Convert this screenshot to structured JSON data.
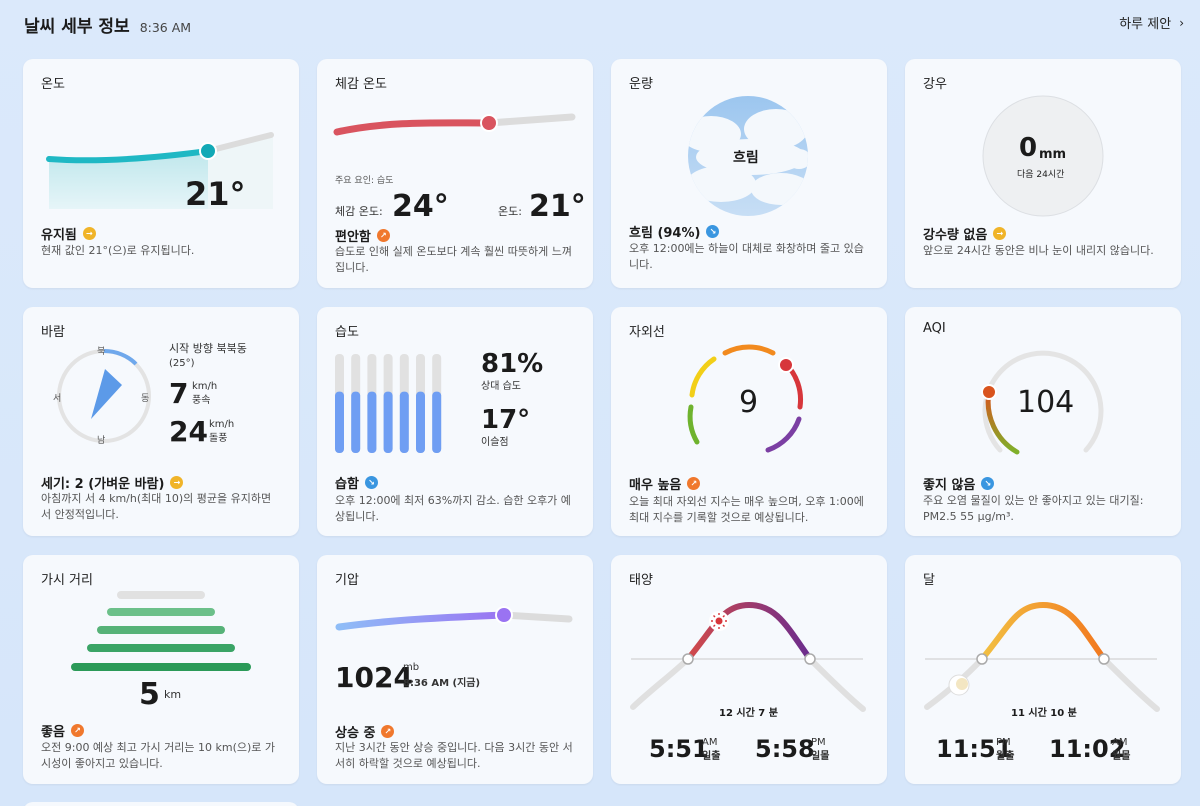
{
  "header": {
    "title": "날씨 세부 정보",
    "time": "8:36 AM",
    "daily_link": "하루 제안"
  },
  "temperature": {
    "title": "온도",
    "value": "21°",
    "status": "유지됨",
    "desc": "현재 값인 21°(으)로 유지됩니다."
  },
  "feels_like": {
    "title": "체감 온도",
    "factor": "주요 요인: 습도",
    "feels_label": "체감 온도:",
    "feels_value": "24°",
    "temp_label": "온도:",
    "temp_value": "21°",
    "status": "편안함",
    "desc": "습도로 인해 실제 온도보다 계속 훨씬 따뜻하게 느껴집니다."
  },
  "cloud": {
    "title": "운량",
    "center": "흐림",
    "status": "흐림 (94%)",
    "desc": "오후 12:00에는 하늘이 대체로 화창하며 줄고 있습니다."
  },
  "precip": {
    "title": "강우",
    "value": "0",
    "unit": "mm",
    "sub": "다음 24시간",
    "status": "강수량 없음",
    "desc": "앞으로 24시간 동안은 비나 눈이 내리지 않습니다."
  },
  "wind": {
    "title": "바람",
    "n": "북",
    "e": "동",
    "s": "남",
    "w": "서",
    "from_label": "시작 방향 북북동",
    "from_deg": "(25°)",
    "speed": "7",
    "speed_unit": "km/h",
    "speed_label": "풍속",
    "gust": "24",
    "gust_unit": "km/h",
    "gust_label": "돌풍",
    "status": "세기: 2 (가벼운 바람)",
    "desc": "아침까지 서 4 km/h(최대 10)의 평균을 유지하면서 안정적입니다."
  },
  "humidity": {
    "title": "습도",
    "value": "81%",
    "value_label": "상대 습도",
    "dew": "17°",
    "dew_label": "이슬점",
    "fill_fraction": 0.62,
    "status": "습함",
    "desc": "오후 12:00에 최저 63%까지 감소. 습한 오후가 예상됩니다."
  },
  "uv": {
    "title": "자외선",
    "value": "9",
    "status": "매우 높음",
    "desc": "오늘 최대 자외선 지수는 매우 높으며, 오후 1:00에 최대 지수를 기록할 것으로 예상됩니다."
  },
  "aqi": {
    "title": "AQI",
    "value": "104",
    "status": "좋지 않음",
    "desc": "주요 오염 물질이 있는 안 좋아지고 있는 대기질: PM2.5 55 μg/m³."
  },
  "visibility": {
    "title": "가시 거리",
    "value": "5",
    "unit": "km",
    "status": "좋음",
    "desc": "오전 9:00 예상 최고 가시 거리는 10 km(으)로 가시성이 좋아지고 있습니다."
  },
  "pressure": {
    "title": "기압",
    "value": "1024",
    "unit": "mb",
    "time": "8:36 AM (지금)",
    "status": "상승 중",
    "desc": "지난 3시간 동안 상승 중입니다. 다음 3시간 동안 서서히 하락할 것으로 예상됩니다."
  },
  "sun": {
    "title": "태양",
    "duration": "12 시간 7 분",
    "rise_time": "5:51",
    "rise_ampm": "AM",
    "rise_label": "일출",
    "set_time": "5:58",
    "set_ampm": "PM",
    "set_label": "일몰"
  },
  "moon": {
    "title": "달",
    "duration": "11 시간 10 분",
    "rise_time": "11:51",
    "rise_ampm": "PM",
    "rise_label": "월출",
    "set_time": "11:02",
    "set_ampm": "AM",
    "set_label": "월몰"
  },
  "colors": {
    "accent_teal": "#1fb8c4",
    "feels_red": "#d9545f",
    "humidity_blue": "#6f9ef3",
    "pressure_purple": "#8c6cf0"
  }
}
